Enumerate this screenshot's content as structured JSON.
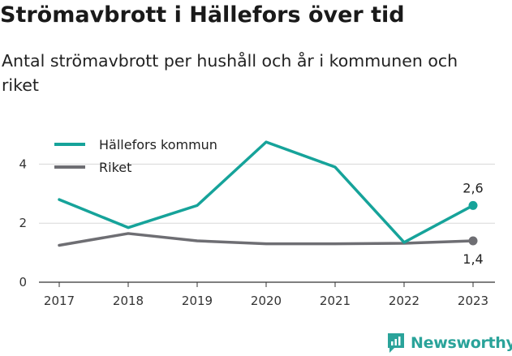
{
  "title": "Strömavbrott i Hällefors över tid",
  "subtitle": "Antal strömavbrott per hushåll och år i kommunen och riket",
  "brand": "Newsworthy",
  "colors": {
    "kommun": "#16a39a",
    "riket": "#6e6e73",
    "grid": "#d8d8d8",
    "axis": "#333333"
  },
  "chart_data": {
    "type": "line",
    "title": "Strömavbrott i Hällefors över tid",
    "subtitle": "Antal strömavbrott per hushåll och år i kommunen och riket",
    "x": [
      "2017",
      "2018",
      "2019",
      "2020",
      "2021",
      "2022",
      "2023"
    ],
    "ylim": [
      0,
      5
    ],
    "yticks": [
      "0",
      "2",
      "4"
    ],
    "grid": true,
    "legend": "top-left",
    "series": [
      {
        "name": "Hällefors kommun",
        "color": "#16a39a",
        "values": [
          2.8,
          1.85,
          2.6,
          4.75,
          3.9,
          1.35,
          2.6
        ],
        "end_label": "2,6"
      },
      {
        "name": "Riket",
        "color": "#6e6e73",
        "values": [
          1.25,
          1.65,
          1.4,
          1.3,
          1.3,
          1.32,
          1.4
        ],
        "end_label": "1,4"
      }
    ]
  }
}
